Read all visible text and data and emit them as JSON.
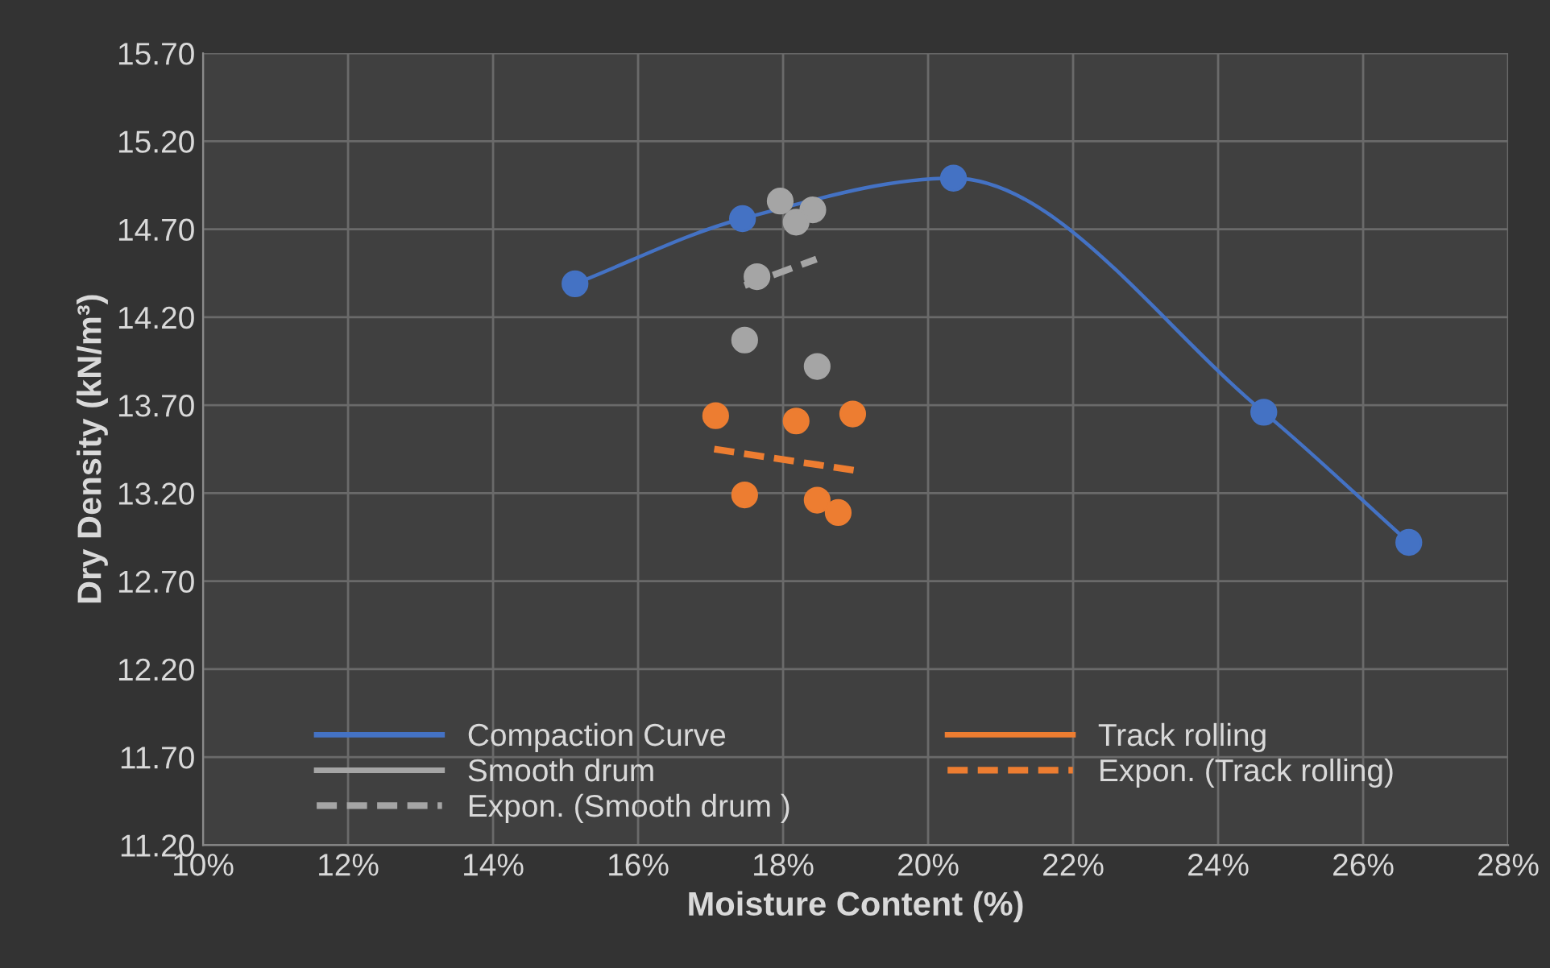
{
  "chart_data": {
    "type": "scatter",
    "xlabel": "Moisture Content (%)",
    "ylabel": "Dry Density (kN/m³)",
    "xlim": [
      10,
      28
    ],
    "ylim": [
      11.2,
      15.7
    ],
    "xticks": [
      {
        "value": 10,
        "label": "10%"
      },
      {
        "value": 12,
        "label": "12%"
      },
      {
        "value": 14,
        "label": "14%"
      },
      {
        "value": 16,
        "label": "16%"
      },
      {
        "value": 18,
        "label": "18%"
      },
      {
        "value": 20,
        "label": "20%"
      },
      {
        "value": 22,
        "label": "22%"
      },
      {
        "value": 24,
        "label": "24%"
      },
      {
        "value": 26,
        "label": "26%"
      },
      {
        "value": 28,
        "label": "28%"
      }
    ],
    "yticks": [
      {
        "value": 11.2,
        "label": "11.20"
      },
      {
        "value": 11.7,
        "label": "11.70"
      },
      {
        "value": 12.2,
        "label": "12.20"
      },
      {
        "value": 12.7,
        "label": "12.70"
      },
      {
        "value": 13.2,
        "label": "13.20"
      },
      {
        "value": 13.7,
        "label": "13.70"
      },
      {
        "value": 14.2,
        "label": "14.20"
      },
      {
        "value": 14.7,
        "label": "14.70"
      },
      {
        "value": 15.2,
        "label": "15.20"
      },
      {
        "value": 15.7,
        "label": "15.70"
      }
    ],
    "grid": true,
    "legend": "bottom",
    "series": [
      {
        "name": "Compaction Curve",
        "type": "line",
        "color": "#4472c4",
        "marker": "circle",
        "line_style": "solid",
        "x": [
          15.13,
          17.44,
          20.35,
          24.63,
          26.63
        ],
        "values": [
          14.39,
          14.76,
          14.99,
          13.66,
          12.92
        ]
      },
      {
        "name": "Smooth drum",
        "color": "#a5a5a5",
        "marker": "circle",
        "x": [
          17.96,
          18.41,
          18.18,
          17.64,
          17.47,
          18.47
        ],
        "values": [
          14.86,
          14.81,
          14.74,
          14.43,
          14.07,
          13.92
        ]
      },
      {
        "name": "Expon. (Smooth drum )",
        "type": "line",
        "color": "#a5a5a5",
        "marker": "none",
        "line_style": "dashed",
        "x": [
          17.47,
          18.46
        ],
        "values": [
          14.38,
          14.53
        ]
      },
      {
        "name": "Track rolling",
        "color": "#ed7d31",
        "marker": "circle",
        "x": [
          17.07,
          18.18,
          18.96,
          17.47,
          18.47,
          18.76
        ],
        "values": [
          13.64,
          13.61,
          13.65,
          13.19,
          13.16,
          13.09
        ]
      },
      {
        "name": "Expon. (Track rolling)",
        "type": "line",
        "color": "#ed7d31",
        "marker": "none",
        "line_style": "dashed",
        "x": [
          17.05,
          18.98
        ],
        "values": [
          13.45,
          13.33
        ]
      }
    ]
  }
}
